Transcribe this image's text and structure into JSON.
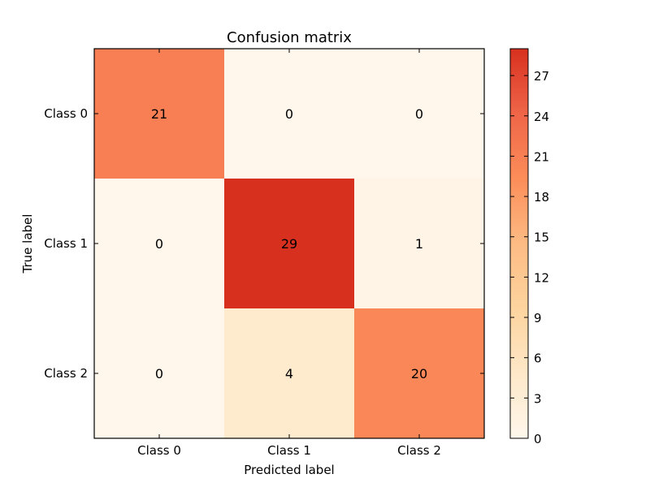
{
  "chart_data": {
    "type": "heatmap",
    "title": "Confusion matrix",
    "xlabel": "Predicted label",
    "ylabel": "True label",
    "x_categories": [
      "Class 0",
      "Class 1",
      "Class 2"
    ],
    "y_categories": [
      "Class 0",
      "Class 1",
      "Class 2"
    ],
    "values": [
      [
        21,
        0,
        0
      ],
      [
        0,
        29,
        1
      ],
      [
        0,
        4,
        20
      ]
    ],
    "colorbar": {
      "min": 0,
      "max": 29,
      "ticks": [
        "0",
        "3",
        "6",
        "9",
        "12",
        "15",
        "18",
        "21",
        "24",
        "27"
      ]
    },
    "colormap": [
      "#fff7ec",
      "#fee8c8",
      "#fdd49e",
      "#fdbb84",
      "#fc8d59",
      "#ef6548",
      "#d7301f"
    ]
  }
}
